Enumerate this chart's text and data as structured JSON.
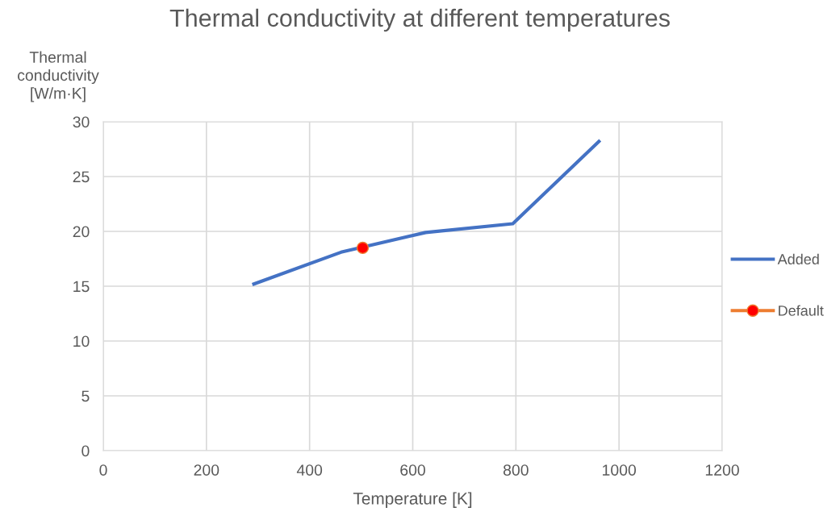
{
  "chart_data": {
    "type": "line",
    "title": "Thermal conductivity at different temperatures",
    "xlabel": "Temperature [K]",
    "ylabel": "Thermal\nconductivity\n[W/m·K]",
    "xlim": [
      0,
      1200
    ],
    "xticks": [
      0,
      200,
      400,
      600,
      800,
      1000,
      1200
    ],
    "ylim": [
      0,
      30
    ],
    "yticks": [
      0,
      5,
      10,
      15,
      20,
      25,
      30
    ],
    "grid": true,
    "legend": "right",
    "series": [
      {
        "name": "Added",
        "color": "#4472c4",
        "marker": "none",
        "x": [
          292,
          461,
          625,
          794,
          961
        ],
        "values": [
          15.2,
          18.1,
          19.9,
          20.7,
          28.2
        ]
      },
      {
        "name": "Default",
        "color": "#ed7d31",
        "colors": [
          "#ff0000"
        ],
        "marker": "circle",
        "x": [
          503
        ],
        "values": [
          18.5
        ]
      }
    ]
  }
}
